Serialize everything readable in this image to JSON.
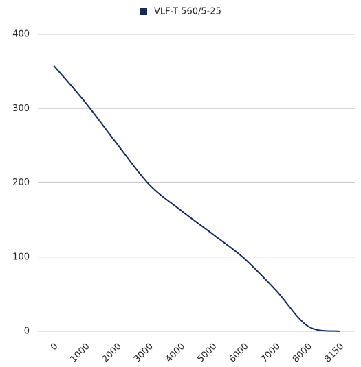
{
  "chart_data": {
    "type": "line",
    "categories": [
      "0",
      "1000",
      "2000",
      "3000",
      "4000",
      "5000",
      "6000",
      "7000",
      "8000",
      "8150"
    ],
    "series": [
      {
        "name": "VLF-T 560/5-25",
        "color": "#13295b",
        "values": [
          358,
          308,
          252,
          198,
          163,
          131,
          98,
          55,
          7,
          0
        ]
      }
    ],
    "ylim": [
      0,
      400
    ],
    "yticks": [
      0,
      100,
      200,
      300,
      400
    ],
    "grid": true,
    "legend": "top"
  }
}
